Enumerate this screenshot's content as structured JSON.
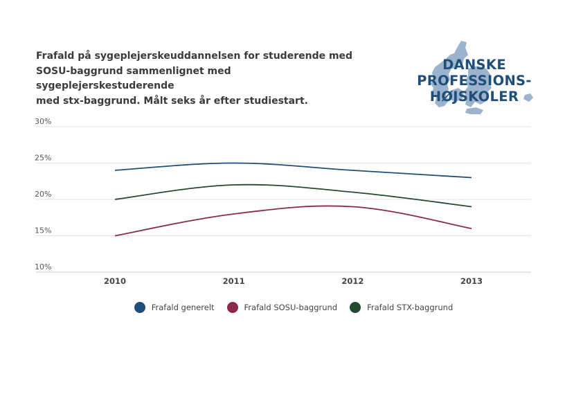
{
  "chart_title_lines": [
    "Frafald på sygeplejerskeuddannelsen for studerende med",
    "SOSU-baggrund sammenlignet med sygeplejerskestuderende",
    "med stx-baggrund. Målt seks år efter studiestart."
  ],
  "logo": {
    "lines": [
      "DANSKE",
      "PROFESSIONS-",
      "HØJSKOLER"
    ],
    "text_color": "#1f4e79",
    "map_color": "#9bb3cc"
  },
  "chart_data": {
    "type": "line",
    "title": "Frafald på sygeplejerskeuddannelsen for studerende med SOSU-baggrund sammenlignet med sygeplejerskestuderende med stx-baggrund. Målt seks år efter studiestart.",
    "x": [
      "2010",
      "2011",
      "2012",
      "2013"
    ],
    "ylim": [
      10,
      30
    ],
    "yticks": [
      10,
      15,
      20,
      25,
      30
    ],
    "ytick_labels": [
      "10%",
      "15%",
      "20%",
      "25%",
      "30%"
    ],
    "xlabel": "",
    "ylabel": "",
    "grid": true,
    "legend_position": "bottom",
    "series": [
      {
        "name": "Frafald generelt",
        "color": "#1f4e79",
        "values": [
          24,
          25,
          24,
          23
        ]
      },
      {
        "name": "Frafald SOSU-baggrund",
        "color": "#8b2a48",
        "values": [
          15,
          18,
          19,
          16
        ]
      },
      {
        "name": "Frafald STX-baggrund",
        "color": "#234a2d",
        "values": [
          20,
          22,
          21,
          19
        ]
      }
    ]
  }
}
